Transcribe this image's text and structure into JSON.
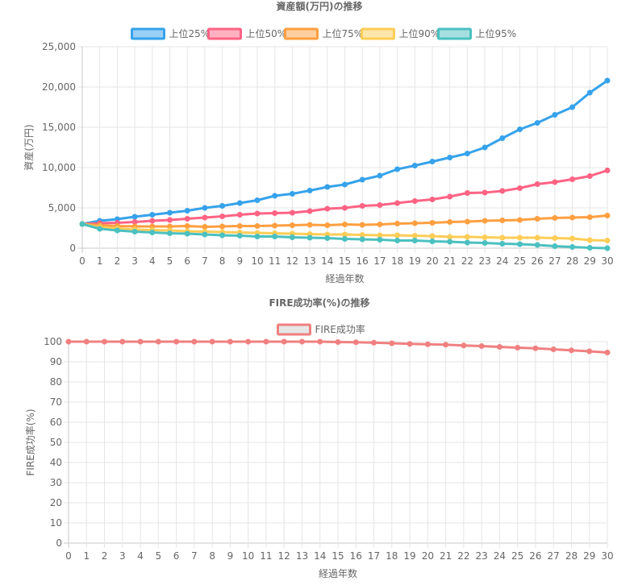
{
  "chart_data": [
    {
      "type": "line",
      "title": "資産額(万円)の推移",
      "xlabel": "経過年数",
      "ylabel": "資産(万円)",
      "ylim": [
        0,
        25000
      ],
      "yticks": [
        0,
        5000,
        10000,
        15000,
        20000,
        25000
      ],
      "ytick_labels": [
        "0",
        "5,000",
        "10,000",
        "15,000",
        "20,000",
        "25,000"
      ],
      "grid": true,
      "legend_position": "top",
      "x": [
        0,
        1,
        2,
        3,
        4,
        5,
        6,
        7,
        8,
        9,
        10,
        11,
        12,
        13,
        14,
        15,
        16,
        17,
        18,
        19,
        20,
        21,
        22,
        23,
        24,
        25,
        26,
        27,
        28,
        29,
        30
      ],
      "series": [
        {
          "name": "上位25%",
          "color": "#36a2eb",
          "fill": "#9ad0f5",
          "values": [
            3000,
            3400,
            3600,
            3900,
            4150,
            4400,
            4650,
            5000,
            5250,
            5600,
            5950,
            6500,
            6750,
            7150,
            7600,
            7900,
            8500,
            9000,
            9800,
            10250,
            10750,
            11250,
            11750,
            12500,
            13650,
            14750,
            15550,
            16550,
            17500,
            19300,
            20800
          ]
        },
        {
          "name": "上位50%",
          "color": "#ff6384",
          "fill": "#ffb1c1",
          "values": [
            3000,
            3100,
            3150,
            3250,
            3400,
            3500,
            3650,
            3800,
            3950,
            4150,
            4300,
            4350,
            4400,
            4600,
            4900,
            5000,
            5250,
            5350,
            5600,
            5850,
            6050,
            6400,
            6850,
            6900,
            7100,
            7450,
            7950,
            8200,
            8550,
            8950,
            9650
          ]
        },
        {
          "name": "上位75%",
          "color": "#ff9f40",
          "fill": "#ffcf9f",
          "values": [
            3000,
            2850,
            2750,
            2700,
            2700,
            2700,
            2750,
            2650,
            2700,
            2750,
            2750,
            2800,
            2850,
            2900,
            2850,
            2950,
            2900,
            2950,
            3050,
            3100,
            3150,
            3250,
            3300,
            3400,
            3450,
            3500,
            3650,
            3750,
            3800,
            3850,
            4050
          ]
        },
        {
          "name": "上位90%",
          "color": "#ffcd56",
          "fill": "#ffe6aa",
          "values": [
            3000,
            2600,
            2450,
            2300,
            2250,
            2200,
            2100,
            2050,
            2000,
            1950,
            1900,
            1850,
            1800,
            1750,
            1700,
            1700,
            1650,
            1600,
            1600,
            1550,
            1500,
            1400,
            1400,
            1350,
            1300,
            1300,
            1300,
            1250,
            1200,
            1000,
            950
          ]
        },
        {
          "name": "上位95%",
          "color": "#4bc0c0",
          "fill": "#a5dfdf",
          "values": [
            3000,
            2400,
            2200,
            2050,
            1950,
            1850,
            1800,
            1700,
            1600,
            1550,
            1450,
            1450,
            1350,
            1300,
            1250,
            1150,
            1100,
            1050,
            950,
            950,
            850,
            800,
            700,
            650,
            550,
            500,
            400,
            250,
            150,
            50,
            0
          ]
        }
      ]
    },
    {
      "type": "line",
      "title": "FIRE成功率(%)の推移",
      "xlabel": "経過年数",
      "ylabel": "FIRE成功率(%)",
      "ylim": [
        0,
        100
      ],
      "yticks": [
        0,
        10,
        20,
        30,
        40,
        50,
        60,
        70,
        80,
        90,
        100
      ],
      "ytick_labels": [
        "0",
        "10",
        "20",
        "30",
        "40",
        "50",
        "60",
        "70",
        "80",
        "90",
        "100"
      ],
      "grid": true,
      "legend_position": "top",
      "x": [
        0,
        1,
        2,
        3,
        4,
        5,
        6,
        7,
        8,
        9,
        10,
        11,
        12,
        13,
        14,
        15,
        16,
        17,
        18,
        19,
        20,
        21,
        22,
        23,
        24,
        25,
        26,
        27,
        28,
        29,
        30
      ],
      "series": [
        {
          "name": "FIRE成功率",
          "color": "#f08080",
          "fill": "#e6e6e6",
          "values": [
            100,
            100,
            100,
            100,
            100,
            100,
            100,
            100,
            100,
            100,
            100,
            100,
            100,
            100,
            100,
            99.8,
            99.7,
            99.5,
            99.2,
            98.9,
            98.7,
            98.5,
            98.1,
            97.8,
            97.4,
            97.0,
            96.7,
            96.2,
            95.7,
            95.2,
            94.6
          ]
        }
      ]
    }
  ]
}
